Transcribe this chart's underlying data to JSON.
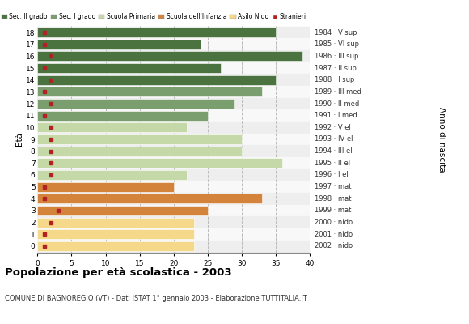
{
  "ages": [
    18,
    17,
    16,
    15,
    14,
    13,
    12,
    11,
    10,
    9,
    8,
    7,
    6,
    5,
    4,
    3,
    2,
    1,
    0
  ],
  "years": [
    "1984 · V sup",
    "1985 · VI sup",
    "1986 · III sup",
    "1987 · II sup",
    "1988 · I sup",
    "1989 · III med",
    "1990 · II med",
    "1991 · I med",
    "1992 · V el",
    "1993 · IV el",
    "1994 · III el",
    "1995 · II el",
    "1996 · I el",
    "1997 · mat",
    "1998 · mat",
    "1999 · mat",
    "2000 · nido",
    "2001 · nido",
    "2002 · nido"
  ],
  "bar_values": [
    35,
    24,
    39,
    27,
    35,
    33,
    29,
    25,
    22,
    30,
    30,
    36,
    22,
    20,
    33,
    25,
    23,
    23,
    23
  ],
  "stranieri": [
    1,
    1,
    2,
    1,
    2,
    1,
    2,
    1,
    2,
    2,
    2,
    2,
    2,
    1,
    1,
    3,
    2,
    1,
    1
  ],
  "sec2_color": "#4a7340",
  "sec1_color": "#7a9e6e",
  "primaria_color": "#c5d9a8",
  "infanzia_color": "#d4843a",
  "nido_color": "#f5d88a",
  "stranieri_color": "#b22222",
  "legend_labels": [
    "Sec. II grado",
    "Sec. I grado",
    "Scuola Primaria",
    "Scuola dell'Infanzia",
    "Asilo Nido",
    "Stranieri"
  ],
  "legend_colors": [
    "#4a7340",
    "#7a9e6e",
    "#c5d9a8",
    "#d4843a",
    "#f5d88a",
    "#b22222"
  ],
  "title": "Popolazione per età scolastica - 2003",
  "subtitle": "COMUNE DI BAGNOREGIO (VT) - Dati ISTAT 1° gennaio 2003 - Elaborazione TUTTITALIA.IT",
  "ylabel": "Età",
  "ylabel2": "Anno di nascita",
  "xlabel_vals": [
    0,
    5,
    10,
    15,
    20,
    25,
    30,
    35,
    40
  ],
  "xlim": [
    0,
    40
  ],
  "bg_color": "#ffffff",
  "grid_color": "#bbbbbb",
  "sec2_ages": [
    14,
    15,
    16,
    17,
    18
  ],
  "sec1_ages": [
    11,
    12,
    13
  ],
  "primaria_ages": [
    6,
    7,
    8,
    9,
    10
  ],
  "infanzia_ages": [
    3,
    4,
    5
  ],
  "nido_ages": [
    0,
    1,
    2
  ]
}
